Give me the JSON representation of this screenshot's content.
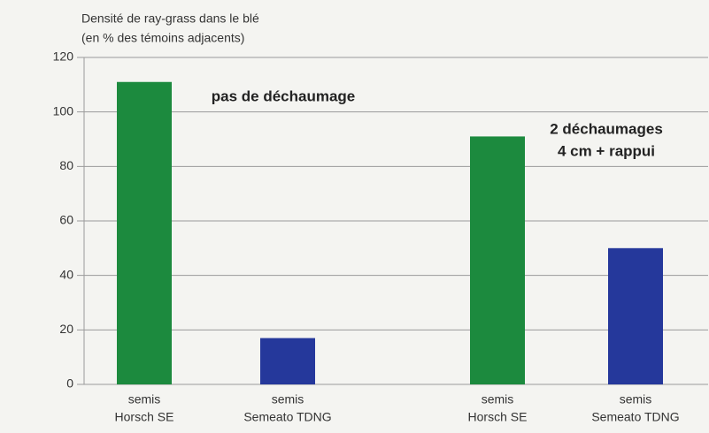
{
  "chart_data": {
    "type": "bar",
    "title": "Densité de ray-grass dans le blé",
    "subtitle": "(en % des témoins adjacents)",
    "categories": [
      [
        "semis",
        "Horsch SE"
      ],
      [
        "semis",
        "Semeato TDNG"
      ],
      [
        "semis",
        "Horsch SE"
      ],
      [
        "semis",
        "Semeato TDNG"
      ]
    ],
    "values": [
      111,
      17,
      91,
      50
    ],
    "colors": [
      "#1c8a3e",
      "#25389b",
      "#1c8a3e",
      "#25389b"
    ],
    "annotations": [
      "pas de déchaumage",
      "2 déchaumages",
      "4 cm + rappui"
    ],
    "ylim": [
      0,
      120
    ],
    "yticks": [
      0,
      20,
      40,
      60,
      80,
      100,
      120
    ],
    "grid": true
  }
}
